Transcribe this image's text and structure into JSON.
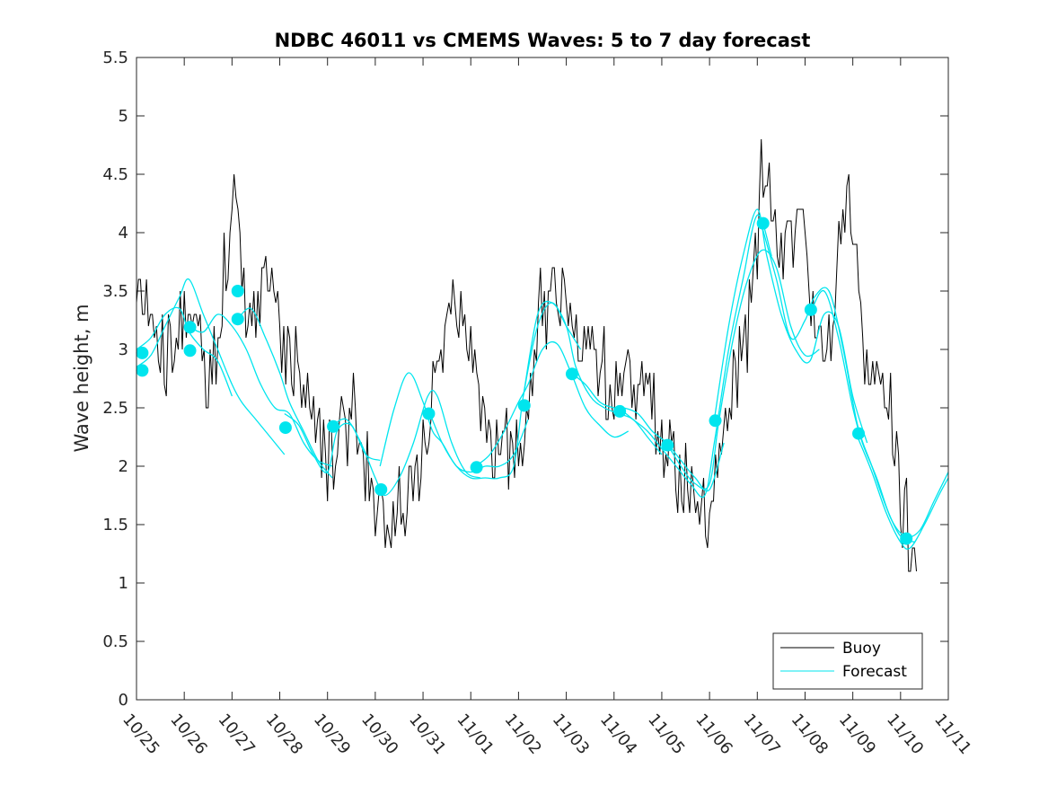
{
  "chart_data": {
    "type": "line",
    "title": "NDBC 46011 vs CMEMS Waves: 5 to 7 day forecast",
    "xlabel": "",
    "ylabel": "Wave height, m",
    "xlim": [
      0,
      17
    ],
    "ylim": [
      0,
      5.5
    ],
    "yticks": [
      0,
      0.5,
      1,
      1.5,
      2,
      2.5,
      3,
      3.5,
      4,
      4.5,
      5,
      5.5
    ],
    "ytick_labels": [
      "0",
      "0.5",
      "1",
      "1.5",
      "2",
      "2.5",
      "3",
      "3.5",
      "4",
      "4.5",
      "5",
      "5.5"
    ],
    "xticks": [
      0,
      1,
      2,
      3,
      4,
      5,
      6,
      7,
      8,
      9,
      10,
      11,
      12,
      13,
      14,
      15,
      16,
      17
    ],
    "xtick_labels": [
      "10/25",
      "10/26",
      "10/27",
      "10/28",
      "10/29",
      "10/30",
      "10/31",
      "11/01",
      "11/02",
      "11/03",
      "11/04",
      "11/05",
      "11/06",
      "11/07",
      "11/08",
      "11/09",
      "11/10",
      "11/11"
    ],
    "legend": {
      "location": "bottom-right",
      "entries": [
        "Buoy",
        "Forecast"
      ]
    },
    "colors": {
      "buoy": "#000000",
      "forecast": "#00e5ee",
      "axis": "#262626"
    },
    "buoy_anchors": {
      "x": [
        0,
        0.25,
        0.5,
        0.75,
        1.0,
        1.25,
        1.5,
        1.75,
        1.9,
        2.05,
        2.15,
        2.3,
        2.6,
        2.85,
        3.0,
        3.3,
        3.6,
        4.0,
        4.3,
        4.45,
        4.7,
        5.0,
        5.3,
        5.5,
        5.8,
        6.1,
        6.3,
        6.6,
        6.9,
        7.2,
        7.5,
        7.8,
        8.0,
        8.2,
        8.4,
        8.6,
        8.8,
        9.2,
        9.6,
        9.9,
        10.1,
        10.4,
        10.8,
        11.1,
        11.4,
        11.7,
        12.0,
        12.2,
        12.5,
        12.8,
        13.0,
        13.1,
        13.3,
        13.6,
        13.9,
        14.1,
        14.3,
        14.5,
        14.7,
        14.95,
        15.2,
        15.5,
        15.8,
        16.0,
        16.2,
        16.35
      ],
      "y": [
        3.5,
        3.2,
        3.0,
        3.0,
        3.3,
        3.0,
        2.7,
        3.2,
        3.9,
        4.3,
        4.0,
        3.2,
        3.5,
        3.6,
        3.0,
        2.9,
        2.5,
        2.1,
        2.2,
        2.5,
        2.2,
        1.6,
        1.6,
        1.6,
        1.7,
        2.4,
        3.0,
        3.3,
        3.3,
        2.4,
        2.2,
        2.15,
        2.2,
        2.4,
        3.3,
        3.4,
        3.6,
        3.2,
        3.0,
        2.6,
        2.7,
        2.8,
        2.5,
        2.2,
        1.9,
        1.8,
        1.5,
        2.0,
        2.7,
        3.2,
        3.8,
        4.6,
        4.4,
        3.8,
        4.2,
        3.4,
        3.0,
        3.2,
        3.8,
        4.3,
        3.1,
        2.8,
        2.5,
        1.8,
        1.3,
        1.15
      ]
    },
    "buoy_noise_amplitude": 0.45,
    "forecast_series": [
      {
        "name": "Forecast run 1",
        "x": [
          0,
          0.3,
          0.6,
          0.9,
          1.1,
          1.4,
          1.7,
          2.0,
          2.2,
          2.5,
          2.8,
          3.1
        ],
        "y": [
          2.85,
          2.95,
          3.2,
          3.45,
          3.6,
          3.3,
          3.0,
          2.7,
          2.55,
          2.4,
          2.25,
          2.1
        ]
      },
      {
        "name": "Forecast run 2",
        "x": [
          0,
          0.3,
          0.6,
          0.9,
          1.1,
          1.4,
          1.7,
          2.0
        ],
        "y": [
          3.0,
          3.1,
          3.3,
          3.35,
          3.15,
          3.0,
          2.9,
          2.6
        ]
      },
      {
        "name": "Forecast run 3",
        "x": [
          1.1,
          1.4,
          1.7,
          2.0,
          2.3,
          2.6,
          2.9,
          3.2,
          3.5,
          3.8,
          4.1
        ],
        "y": [
          3.2,
          3.15,
          3.3,
          3.2,
          3.0,
          2.7,
          2.5,
          2.45,
          2.2,
          2.05,
          2.0
        ]
      },
      {
        "name": "Forecast run 4",
        "x": [
          2.1,
          2.4,
          2.7,
          3.0,
          3.2,
          3.5,
          3.8,
          4.1
        ],
        "y": [
          3.25,
          3.35,
          3.1,
          2.8,
          2.55,
          2.3,
          2.05,
          1.9
        ]
      },
      {
        "name": "Forecast run 5",
        "x": [
          3.1,
          3.4,
          3.7,
          4.0,
          4.2,
          4.5,
          4.8,
          5.1
        ],
        "y": [
          2.45,
          2.35,
          2.1,
          1.95,
          2.3,
          2.35,
          2.1,
          2.05
        ]
      },
      {
        "name": "Forecast run 6",
        "x": [
          4.1,
          4.4,
          4.7,
          5.0,
          5.2,
          5.5,
          5.8,
          6.1,
          6.3,
          6.6,
          6.9,
          7.2
        ],
        "y": [
          2.35,
          2.4,
          2.2,
          1.9,
          1.75,
          1.9,
          2.2,
          2.6,
          2.6,
          2.2,
          1.95,
          1.9
        ]
      },
      {
        "name": "Forecast run 7",
        "x": [
          5.1,
          5.4,
          5.7,
          6.0,
          6.2,
          6.4,
          6.7,
          7.0,
          7.3,
          7.6,
          7.9,
          8.2
        ],
        "y": [
          2.0,
          2.5,
          2.8,
          2.55,
          2.3,
          2.2,
          2.0,
          1.95,
          2.0,
          2.0,
          2.1,
          2.4
        ]
      },
      {
        "name": "Forecast run 8",
        "x": [
          6.1,
          6.4,
          6.7,
          7.0,
          7.3,
          7.6,
          7.9,
          8.1,
          8.4,
          8.7,
          9.0,
          9.3
        ],
        "y": [
          2.5,
          2.2,
          2.0,
          1.9,
          1.9,
          1.9,
          2.0,
          2.6,
          3.2,
          3.4,
          3.2,
          3.0
        ]
      },
      {
        "name": "Forecast run 9",
        "x": [
          7.1,
          7.4,
          7.7,
          8.0,
          8.2,
          8.5,
          8.8,
          9.1,
          9.4,
          9.7,
          10.0,
          10.3
        ],
        "y": [
          2.0,
          2.1,
          2.3,
          2.55,
          2.7,
          3.0,
          3.05,
          2.8,
          2.5,
          2.35,
          2.25,
          2.3
        ]
      },
      {
        "name": "Forecast run 10",
        "x": [
          8.1,
          8.4,
          8.7,
          9.0,
          9.2,
          9.5,
          9.8,
          10.1,
          10.4,
          10.7,
          11.0
        ],
        "y": [
          2.6,
          3.3,
          3.4,
          3.2,
          2.85,
          2.6,
          2.5,
          2.45,
          2.4,
          2.25,
          2.1
        ]
      },
      {
        "name": "Forecast run 11",
        "x": [
          9.1,
          9.4,
          9.7,
          10.0,
          10.2,
          10.5,
          10.8,
          11.1,
          11.4,
          11.7,
          12.0,
          12.3
        ],
        "y": [
          2.8,
          2.7,
          2.55,
          2.5,
          2.5,
          2.45,
          2.3,
          2.2,
          2.05,
          1.9,
          1.8,
          2.2
        ]
      },
      {
        "name": "Forecast run 12",
        "x": [
          10.1,
          10.4,
          10.7,
          11.0,
          11.3,
          11.6,
          11.9,
          12.1,
          12.4,
          12.7,
          13.0,
          13.3
        ],
        "y": [
          2.5,
          2.4,
          2.3,
          2.15,
          2.0,
          1.85,
          1.75,
          2.2,
          3.0,
          3.6,
          4.15,
          3.8
        ]
      },
      {
        "name": "Forecast run 13",
        "x": [
          11.1,
          11.4,
          11.7,
          12.0,
          12.2,
          12.5,
          12.8,
          13.1,
          13.4,
          13.7,
          14.0,
          14.3
        ],
        "y": [
          2.2,
          2.0,
          1.85,
          1.85,
          2.4,
          3.1,
          3.6,
          3.85,
          3.7,
          3.2,
          2.95,
          3.0
        ]
      },
      {
        "name": "Forecast run 14",
        "x": [
          12.1,
          12.4,
          12.7,
          13.0,
          13.2,
          13.5,
          13.8,
          14.1,
          14.4,
          14.7,
          15.0,
          15.3
        ],
        "y": [
          2.4,
          3.2,
          3.8,
          4.2,
          3.8,
          3.3,
          3.0,
          2.9,
          3.3,
          3.2,
          2.6,
          2.2
        ]
      },
      {
        "name": "Forecast run 15",
        "x": [
          13.1,
          13.4,
          13.7,
          14.0,
          14.2,
          14.5,
          14.8,
          15.1,
          15.4,
          15.7,
          16.0,
          16.3
        ],
        "y": [
          4.05,
          3.6,
          3.1,
          3.25,
          3.45,
          3.5,
          3.0,
          2.35,
          2.0,
          1.65,
          1.4,
          1.35
        ]
      },
      {
        "name": "Forecast run 16",
        "x": [
          14.1,
          14.4,
          14.7,
          15.0,
          15.2,
          15.5,
          15.8,
          16.1,
          16.4,
          16.7,
          17.0
        ],
        "y": [
          3.3,
          3.5,
          3.1,
          2.5,
          2.2,
          1.9,
          1.55,
          1.4,
          1.45,
          1.7,
          1.95
        ]
      },
      {
        "name": "Forecast run 17",
        "x": [
          15.1,
          15.4,
          15.7,
          16.0,
          16.2,
          16.5,
          16.8,
          17.0
        ],
        "y": [
          2.25,
          1.95,
          1.6,
          1.35,
          1.3,
          1.5,
          1.75,
          1.9
        ]
      }
    ],
    "forecast_markers": {
      "x": [
        0.12,
        0.12,
        1.12,
        1.12,
        2.12,
        2.12,
        3.12,
        4.12,
        5.12,
        6.12,
        7.12,
        8.12,
        9.12,
        10.12,
        11.12,
        12.12,
        13.12,
        14.12,
        15.12,
        16.12
      ],
      "y": [
        2.97,
        2.82,
        3.19,
        2.99,
        3.5,
        3.26,
        2.33,
        2.34,
        1.8,
        2.45,
        1.99,
        2.52,
        2.79,
        2.47,
        2.18,
        2.39,
        4.08,
        3.34,
        2.28,
        1.38
      ]
    }
  }
}
